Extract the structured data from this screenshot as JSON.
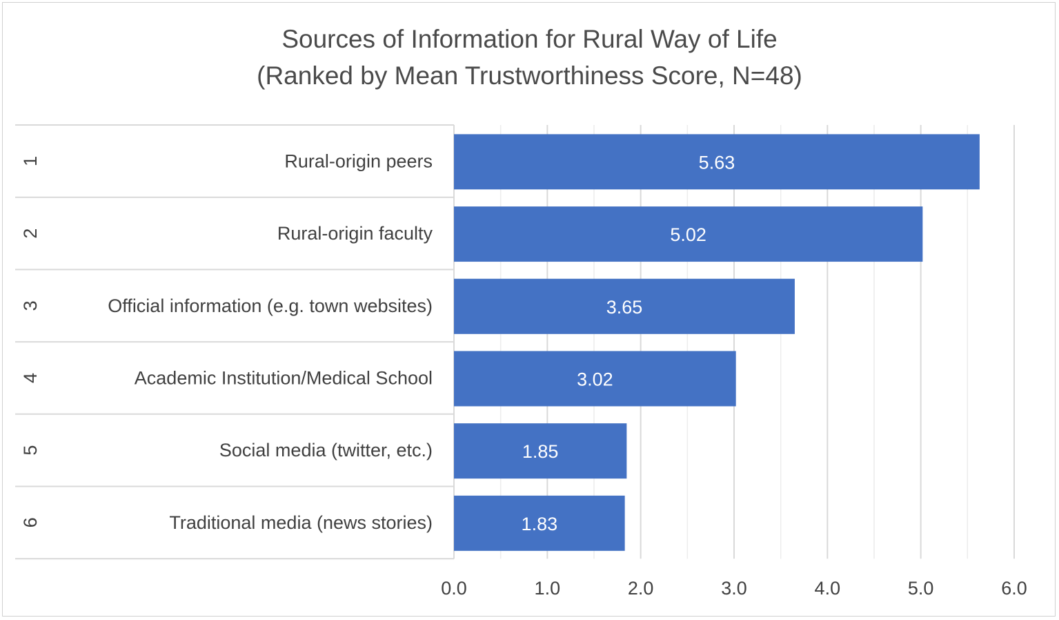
{
  "chart_data": {
    "type": "bar",
    "orientation": "horizontal",
    "title": "Sources of Information for Rural Way of Life",
    "subtitle": "(Ranked by Mean Trustworthiness Score, N=48)",
    "ranks": [
      "1",
      "2",
      "3",
      "4",
      "5",
      "6"
    ],
    "categories": [
      "Rural-origin peers",
      "Rural-origin faculty",
      "Official information (e.g. town websites)",
      "Academic Institution/Medical School",
      "Social media (twitter, etc.)",
      "Traditional media (news stories)"
    ],
    "values": [
      5.63,
      5.02,
      3.65,
      3.02,
      1.85,
      1.83
    ],
    "data_labels": [
      "5.63",
      "5.02",
      "3.65",
      "3.02",
      "1.85",
      "1.83"
    ],
    "xlim": [
      0,
      6
    ],
    "x_ticks": [
      "0.0",
      "1.0",
      "2.0",
      "3.0",
      "4.0",
      "5.0",
      "6.0"
    ],
    "minor_gridlines": true,
    "grid": true,
    "legend": "none",
    "bar_color": "#4472c4"
  }
}
